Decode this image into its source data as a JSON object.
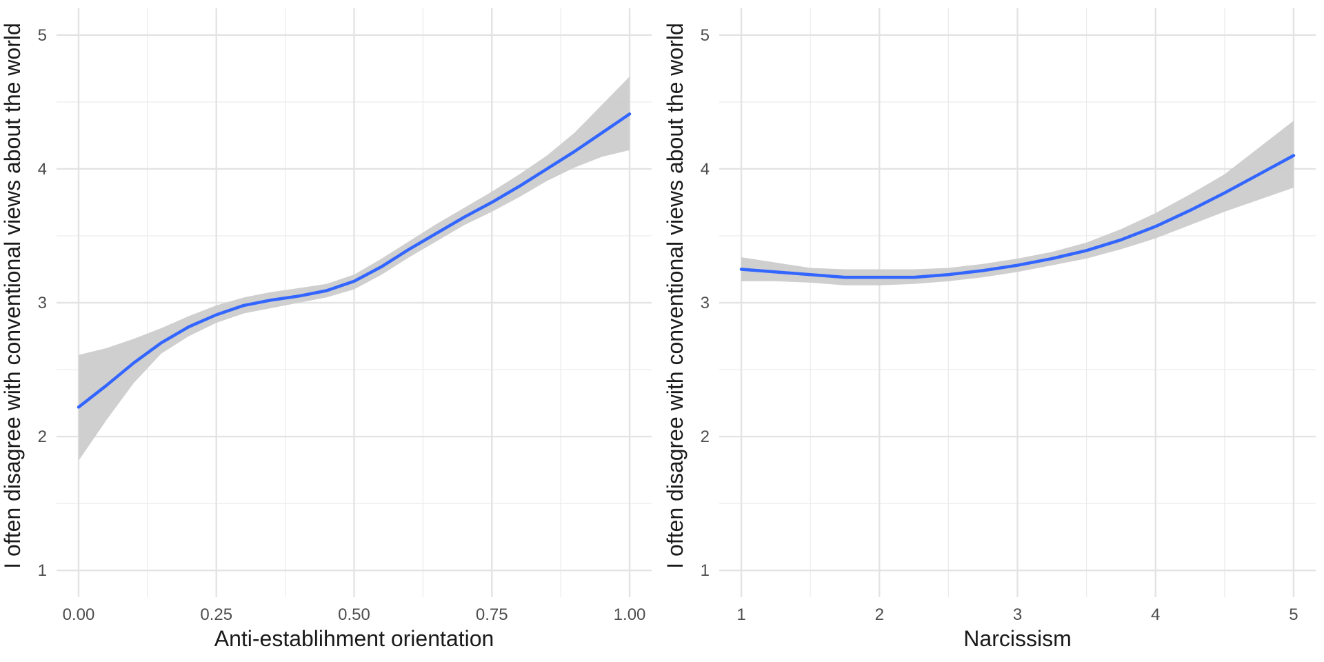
{
  "chart_data": [
    {
      "type": "line",
      "xlabel": "Anti-establihment orientation",
      "ylabel": "I often disagree with conventional views about the world",
      "xlim": [
        -0.04,
        1.04
      ],
      "ylim": [
        0.8,
        5.2
      ],
      "xticks": [
        0.0,
        0.25,
        0.5,
        0.75,
        1.0
      ],
      "xtick_labels": [
        "0.00",
        "0.25",
        "0.50",
        "0.75",
        "1.00"
      ],
      "yticks": [
        1,
        2,
        3,
        4,
        5
      ],
      "ytick_labels": [
        "1",
        "2",
        "3",
        "4",
        "5"
      ],
      "grid": true,
      "line_color": "#3366FF",
      "band_color": "#cccccc",
      "series": [
        {
          "x": [
            0.0,
            0.05,
            0.1,
            0.15,
            0.2,
            0.25,
            0.3,
            0.35,
            0.4,
            0.45,
            0.5,
            0.55,
            0.6,
            0.65,
            0.7,
            0.75,
            0.8,
            0.85,
            0.9,
            0.95,
            1.0
          ],
          "y": [
            2.22,
            2.38,
            2.55,
            2.7,
            2.82,
            2.91,
            2.98,
            3.02,
            3.05,
            3.09,
            3.16,
            3.27,
            3.4,
            3.52,
            3.64,
            3.75,
            3.87,
            4.0,
            4.13,
            4.27,
            4.41
          ],
          "lower": [
            1.82,
            2.12,
            2.4,
            2.62,
            2.75,
            2.85,
            2.92,
            2.96,
            3.0,
            3.04,
            3.1,
            3.21,
            3.34,
            3.46,
            3.58,
            3.68,
            3.79,
            3.91,
            4.01,
            4.09,
            4.14
          ],
          "upper": [
            2.61,
            2.66,
            2.73,
            2.81,
            2.9,
            2.98,
            3.04,
            3.08,
            3.11,
            3.14,
            3.21,
            3.33,
            3.46,
            3.59,
            3.71,
            3.83,
            3.96,
            4.1,
            4.27,
            4.48,
            4.69
          ]
        }
      ]
    },
    {
      "type": "line",
      "xlabel": "Narcissism",
      "ylabel": "I often disagree with conventional views about the world",
      "xlim": [
        0.84,
        5.16
      ],
      "ylim": [
        0.8,
        5.2
      ],
      "xticks": [
        1,
        2,
        3,
        4,
        5
      ],
      "xtick_labels": [
        "1",
        "2",
        "3",
        "4",
        "5"
      ],
      "yticks": [
        1,
        2,
        3,
        4,
        5
      ],
      "ytick_labels": [
        "1",
        "2",
        "3",
        "4",
        "5"
      ],
      "grid": true,
      "line_color": "#3366FF",
      "band_color": "#cccccc",
      "series": [
        {
          "x": [
            1.0,
            1.25,
            1.5,
            1.75,
            2.0,
            2.25,
            2.5,
            2.75,
            3.0,
            3.25,
            3.5,
            3.75,
            4.0,
            4.25,
            4.5,
            4.75,
            5.0
          ],
          "y": [
            3.25,
            3.23,
            3.21,
            3.19,
            3.19,
            3.19,
            3.21,
            3.24,
            3.28,
            3.33,
            3.39,
            3.47,
            3.57,
            3.69,
            3.82,
            3.96,
            4.1
          ],
          "lower": [
            3.16,
            3.16,
            3.15,
            3.13,
            3.13,
            3.14,
            3.16,
            3.19,
            3.23,
            3.28,
            3.33,
            3.4,
            3.48,
            3.58,
            3.68,
            3.77,
            3.86
          ],
          "upper": [
            3.34,
            3.3,
            3.26,
            3.25,
            3.25,
            3.25,
            3.26,
            3.29,
            3.33,
            3.38,
            3.45,
            3.55,
            3.67,
            3.81,
            3.96,
            4.16,
            4.36
          ]
        }
      ]
    }
  ]
}
